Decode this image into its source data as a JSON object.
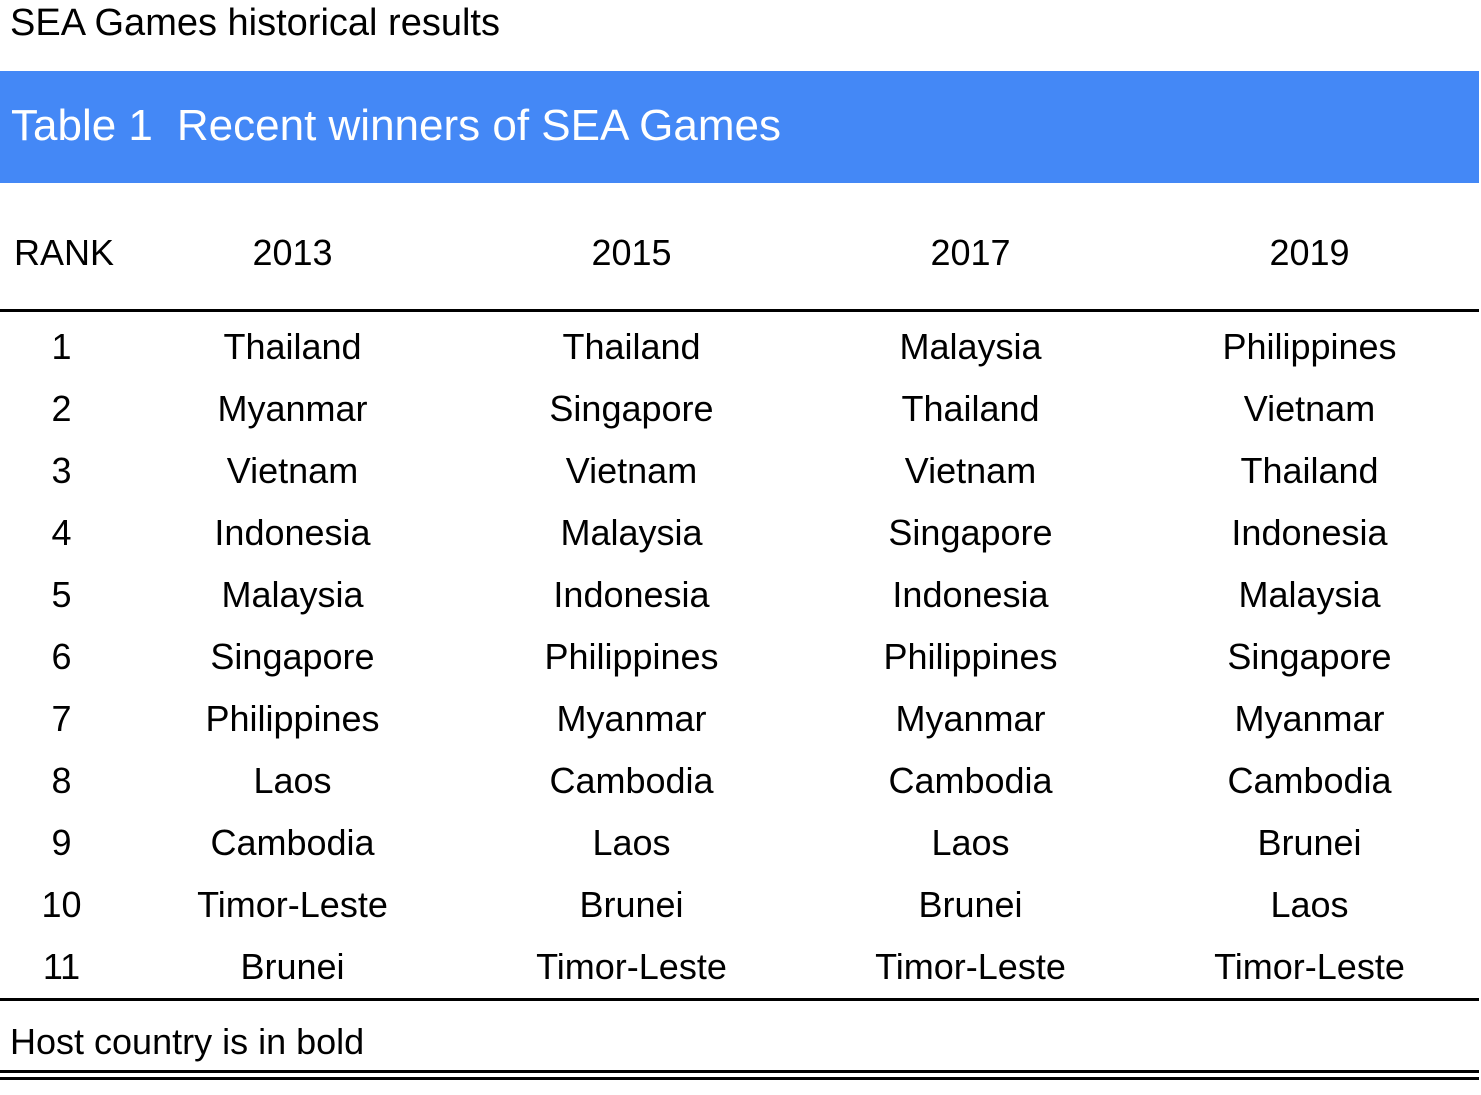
{
  "document": {
    "title": "SEA Games historical results"
  },
  "caption": {
    "number": "Table 1",
    "text": "Recent winners of SEA Games",
    "background_color": "#4488f6",
    "text_color": "#ffffff"
  },
  "table": {
    "headers": [
      "RANK",
      "2013",
      "2015",
      "2017",
      "2019"
    ],
    "rows": [
      {
        "rank": "1",
        "cells": [
          {
            "text": "Thailand",
            "host": false
          },
          {
            "text": "Thailand",
            "host": false
          },
          {
            "text": "Malaysia",
            "host": true
          },
          {
            "text": "Philippines",
            "host": true
          }
        ]
      },
      {
        "rank": "2",
        "cells": [
          {
            "text": "Myanmar",
            "host": true
          },
          {
            "text": "Singapore",
            "host": true
          },
          {
            "text": "Thailand",
            "host": false
          },
          {
            "text": "Vietnam",
            "host": false
          }
        ]
      },
      {
        "rank": "3",
        "cells": [
          {
            "text": "Vietnam",
            "host": false
          },
          {
            "text": "Vietnam",
            "host": false
          },
          {
            "text": "Vietnam",
            "host": false
          },
          {
            "text": "Thailand",
            "host": false
          }
        ]
      },
      {
        "rank": "4",
        "cells": [
          {
            "text": "Indonesia",
            "host": false
          },
          {
            "text": "Malaysia",
            "host": false
          },
          {
            "text": "Singapore",
            "host": false
          },
          {
            "text": "Indonesia",
            "host": false
          }
        ]
      },
      {
        "rank": "5",
        "cells": [
          {
            "text": "Malaysia",
            "host": false
          },
          {
            "text": "Indonesia",
            "host": false
          },
          {
            "text": "Indonesia",
            "host": false
          },
          {
            "text": "Malaysia",
            "host": false
          }
        ]
      },
      {
        "rank": "6",
        "cells": [
          {
            "text": "Singapore",
            "host": false
          },
          {
            "text": "Philippines",
            "host": false
          },
          {
            "text": "Philippines",
            "host": false
          },
          {
            "text": "Singapore",
            "host": false
          }
        ]
      },
      {
        "rank": "7",
        "cells": [
          {
            "text": "Philippines",
            "host": false
          },
          {
            "text": "Myanmar",
            "host": false
          },
          {
            "text": "Myanmar",
            "host": false
          },
          {
            "text": "Myanmar",
            "host": false
          }
        ]
      },
      {
        "rank": "8",
        "cells": [
          {
            "text": "Laos",
            "host": false
          },
          {
            "text": "Cambodia",
            "host": false
          },
          {
            "text": "Cambodia",
            "host": false
          },
          {
            "text": "Cambodia",
            "host": false
          }
        ]
      },
      {
        "rank": "9",
        "cells": [
          {
            "text": "Cambodia",
            "host": false
          },
          {
            "text": "Laos",
            "host": false
          },
          {
            "text": "Laos",
            "host": false
          },
          {
            "text": "Brunei",
            "host": false
          }
        ]
      },
      {
        "rank": "10",
        "cells": [
          {
            "text": "Timor-Leste",
            "host": false
          },
          {
            "text": "Brunei",
            "host": false
          },
          {
            "text": "Brunei",
            "host": false
          },
          {
            "text": "Laos",
            "host": false
          }
        ]
      },
      {
        "rank": "11",
        "cells": [
          {
            "text": "Brunei",
            "host": false
          },
          {
            "text": "Timor-Leste",
            "host": false
          },
          {
            "text": "Timor-Leste",
            "host": false
          },
          {
            "text": "Timor-Leste",
            "host": false
          }
        ]
      }
    ]
  },
  "footnote": {
    "text": "Host country is in bold"
  }
}
